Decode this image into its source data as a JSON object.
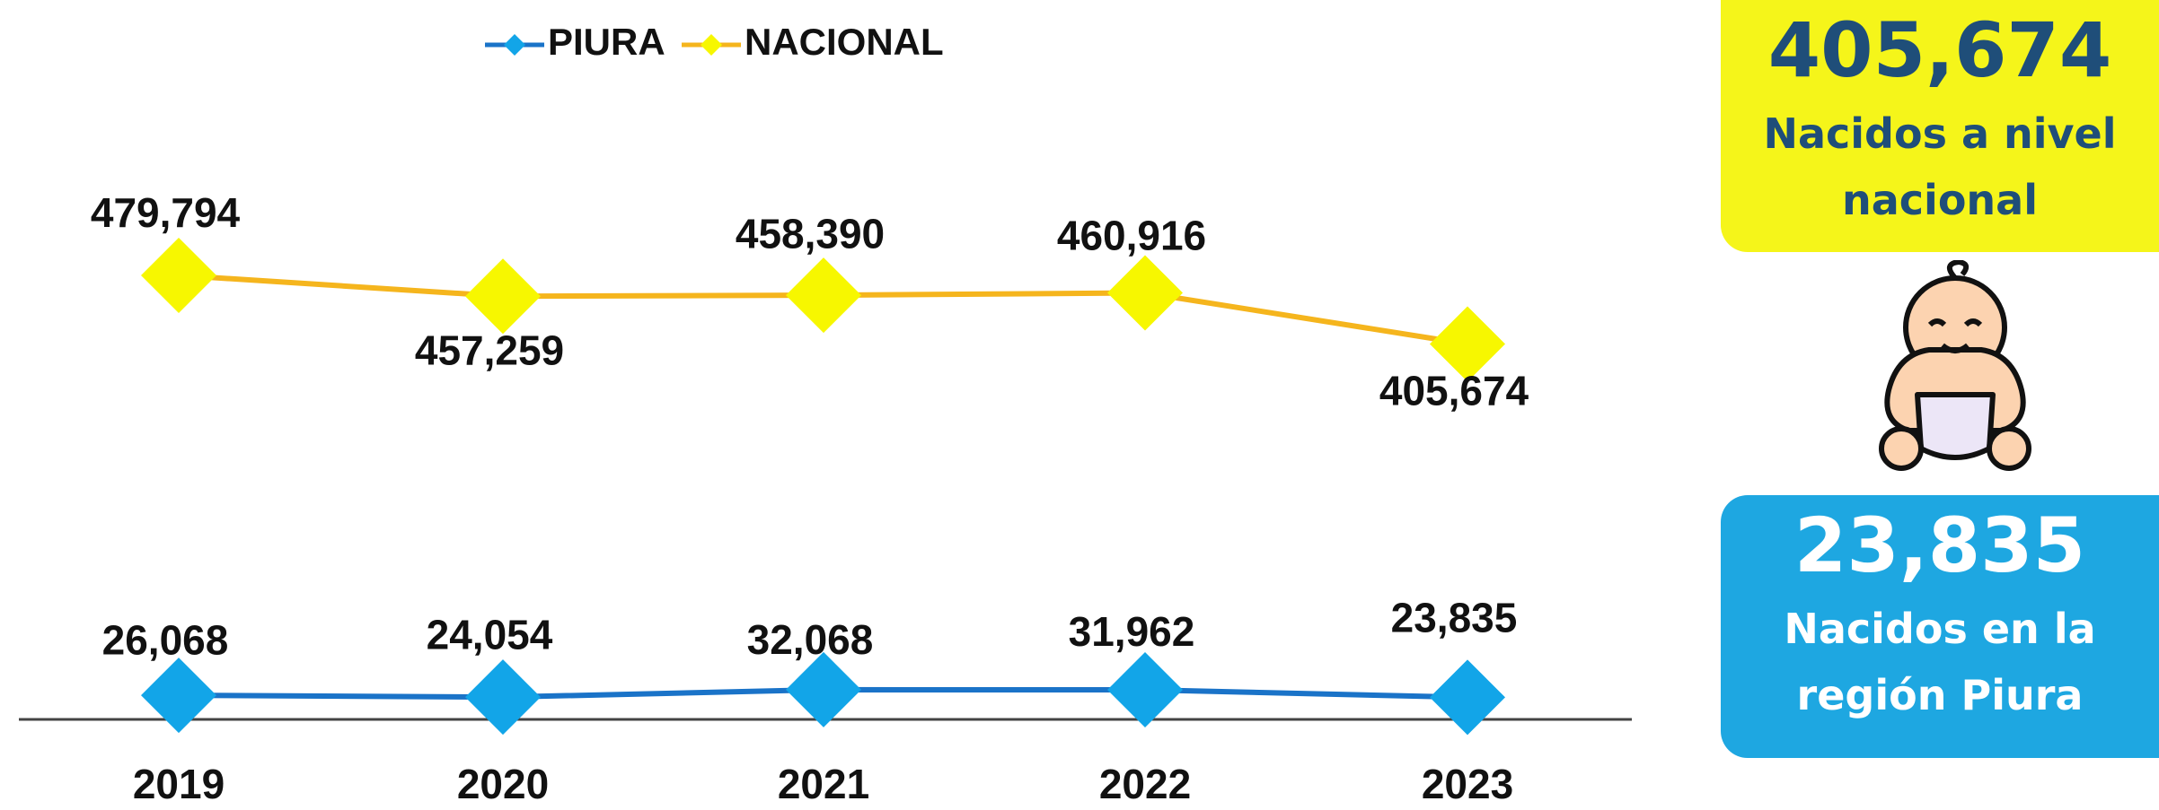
{
  "chart_data": {
    "type": "line",
    "categories": [
      "2019",
      "2020",
      "2021",
      "2022",
      "2023"
    ],
    "series": [
      {
        "name": "PIURA",
        "color": "#1a73c8",
        "marker_color": "#12a5e8",
        "values": [
          26068,
          24054,
          32068,
          31962,
          23835
        ],
        "value_labels": [
          "26,068",
          "24,054",
          "32,068",
          "31,962",
          "23,835"
        ]
      },
      {
        "name": "NACIONAL",
        "color": "#f5b51d",
        "marker_color": "#f7f700",
        "values": [
          479794,
          457259,
          458390,
          460916,
          405674
        ],
        "value_labels": [
          "479,794",
          "457,259",
          "458,390",
          "460,916",
          "405,674"
        ]
      }
    ],
    "ylim": [
      0,
      600000
    ],
    "legend": "top"
  },
  "cards": [
    {
      "number": "405,674",
      "caption": "Nacidos a nivel nacional"
    },
    {
      "number": "23,835",
      "caption": "Nacidos en la región Piura"
    }
  ]
}
